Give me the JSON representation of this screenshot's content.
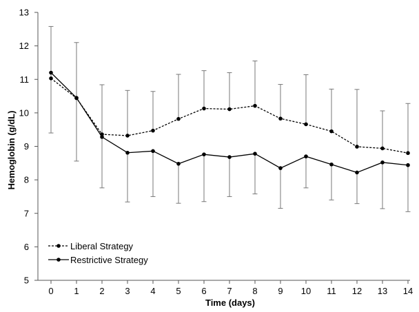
{
  "chart_data": {
    "type": "line",
    "xlabel": "Time (days)",
    "ylabel": "Hemoglobin (g/dL)",
    "x": [
      0,
      1,
      2,
      3,
      4,
      5,
      6,
      7,
      8,
      9,
      10,
      11,
      12,
      13,
      14
    ],
    "ylim": [
      5,
      13
    ],
    "yticks": [
      5,
      6,
      7,
      8,
      9,
      10,
      11,
      12,
      13
    ],
    "grid": false,
    "legend_position": "bottom-left",
    "series": [
      {
        "name": "Liberal Strategy",
        "style": "dashed",
        "marker": "circle",
        "color": "#000000",
        "values": [
          11.03,
          10.44,
          9.36,
          9.32,
          9.47,
          9.82,
          10.13,
          10.11,
          10.21,
          9.83,
          9.66,
          9.45,
          8.99,
          8.94,
          8.8
        ],
        "error_upper": [
          12.58,
          12.1,
          10.84,
          10.67,
          10.64,
          11.15,
          11.26,
          11.2,
          11.55,
          10.85,
          11.14,
          10.71,
          10.7,
          10.06,
          10.28
        ]
      },
      {
        "name": "Restrictive Strategy",
        "style": "solid",
        "marker": "circle",
        "color": "#000000",
        "values": [
          11.2,
          10.45,
          9.28,
          8.81,
          8.86,
          8.48,
          8.76,
          8.68,
          8.78,
          8.35,
          8.7,
          8.46,
          8.22,
          8.52,
          8.44
        ],
        "error_lower": [
          9.4,
          8.56,
          7.76,
          7.34,
          7.5,
          7.3,
          7.35,
          7.5,
          7.58,
          7.15,
          7.76,
          7.4,
          7.29,
          7.14,
          7.05
        ]
      }
    ]
  }
}
